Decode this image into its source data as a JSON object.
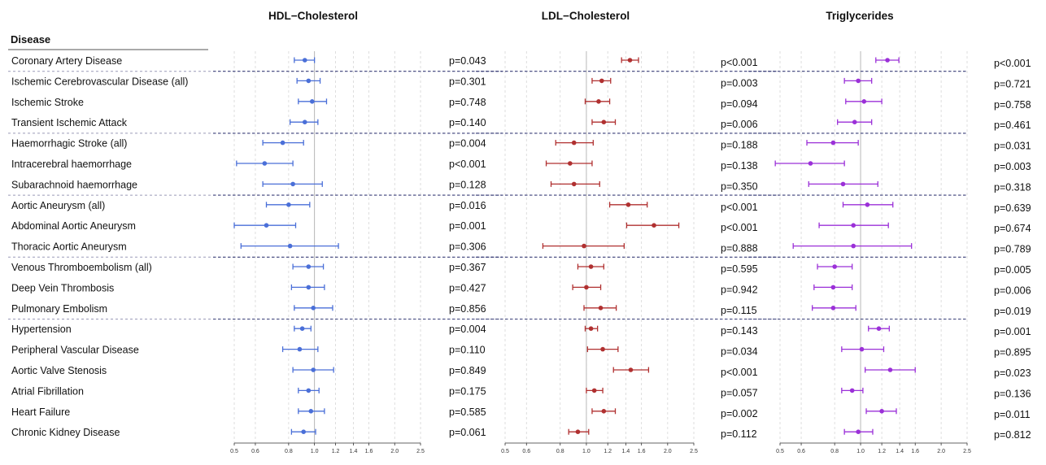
{
  "disease_header": "Disease",
  "diseases": [
    "Coronary Artery Disease",
    "Ischemic Cerebrovascular Disease (all)",
    "Ischemic Stroke",
    "Transient Ischemic Attack",
    "Haemorrhagic Stroke (all)",
    "Intracerebral haemorrhage",
    "Subarachnoid haemorrhage",
    "Aortic Aneurysm (all)",
    "Abdominal Aortic Aneurysm",
    "Thoracic Aortic Aneurysm",
    "Venous Thromboembolism (all)",
    "Deep Vein Thrombosis",
    "Pulmonary Embolism",
    "Hypertension",
    "Peripheral Vascular Disease",
    "Aortic Valve Stenosis",
    "Atrial Fibrillation",
    "Heart Failure",
    "Chronic Kidney Disease"
  ],
  "chart_data": [
    {
      "type": "forest",
      "title": "HDL−Cholesterol",
      "color": "#4a6fd8",
      "x_scale": "log",
      "x_range": [
        0.5,
        2.5
      ],
      "x_ticks": [
        "0.5",
        "0.6",
        "0.8",
        "1.0",
        "1.2",
        "1.4",
        "1.6",
        "2.0",
        "2.5"
      ],
      "reference_line": 1.0,
      "estimates": [
        0.92,
        0.95,
        0.98,
        0.92,
        0.76,
        0.65,
        0.83,
        0.8,
        0.66,
        0.81,
        0.95,
        0.95,
        0.99,
        0.9,
        0.88,
        0.99,
        0.95,
        0.97,
        0.91
      ],
      "ci_low": [
        0.84,
        0.86,
        0.87,
        0.81,
        0.64,
        0.51,
        0.64,
        0.66,
        0.5,
        0.53,
        0.83,
        0.82,
        0.84,
        0.84,
        0.76,
        0.83,
        0.87,
        0.87,
        0.82
      ],
      "ci_high": [
        1.0,
        1.05,
        1.11,
        1.03,
        0.91,
        0.83,
        1.07,
        0.96,
        0.85,
        1.23,
        1.08,
        1.09,
        1.17,
        0.97,
        1.03,
        1.18,
        1.04,
        1.09,
        1.01
      ],
      "p_values": [
        "p=0.043",
        "p=0.301",
        "p=0.748",
        "p=0.140",
        "p=0.004",
        "p<0.001",
        "p=0.128",
        "p=0.016",
        "p=0.001",
        "p=0.306",
        "p=0.367",
        "p=0.427",
        "p=0.856",
        "p=0.004",
        "p=0.110",
        "p=0.849",
        "p=0.175",
        "p=0.585",
        "p=0.061"
      ]
    },
    {
      "type": "forest",
      "title": "LDL−Cholesterol",
      "color": "#b03030",
      "x_scale": "log",
      "x_range": [
        0.5,
        2.5
      ],
      "x_ticks": [
        "0.5",
        "0.6",
        "0.8",
        "1.0",
        "1.2",
        "1.4",
        "1.6",
        "2.0",
        "2.5"
      ],
      "reference_line": 1.0,
      "estimates": [
        1.45,
        1.14,
        1.11,
        1.16,
        0.9,
        0.87,
        0.9,
        1.43,
        1.78,
        0.98,
        1.04,
        1.0,
        1.13,
        1.04,
        1.15,
        1.46,
        1.07,
        1.16,
        0.93
      ],
      "ci_low": [
        1.35,
        1.05,
        0.99,
        1.05,
        0.77,
        0.71,
        0.74,
        1.22,
        1.41,
        0.69,
        0.93,
        0.89,
        0.98,
        0.99,
        1.01,
        1.26,
        1.0,
        1.05,
        0.86
      ],
      "ci_high": [
        1.56,
        1.23,
        1.22,
        1.28,
        1.06,
        1.05,
        1.12,
        1.68,
        2.2,
        1.38,
        1.16,
        1.13,
        1.29,
        1.1,
        1.31,
        1.7,
        1.15,
        1.28,
        1.02
      ],
      "p_values": [
        "p<0.001",
        "p=0.003",
        "p=0.094",
        "p=0.006",
        "p=0.188",
        "p=0.138",
        "p=0.350",
        "p<0.001",
        "p<0.001",
        "p=0.888",
        "p=0.595",
        "p=0.942",
        "p=0.115",
        "p=0.143",
        "p=0.034",
        "p<0.001",
        "p=0.057",
        "p=0.002",
        "p=0.112"
      ]
    },
    {
      "type": "forest",
      "title": "Triglycerides",
      "color": "#9b30d8",
      "x_scale": "log",
      "x_range": [
        0.5,
        2.5
      ],
      "x_ticks": [
        "0.5",
        "0.6",
        "0.8",
        "1.0",
        "1.2",
        "1.4",
        "1.6",
        "2.0",
        "2.5"
      ],
      "reference_line": 1.0,
      "estimates": [
        1.26,
        0.98,
        1.03,
        0.95,
        0.79,
        0.65,
        0.86,
        1.06,
        0.94,
        0.94,
        0.8,
        0.79,
        0.79,
        1.17,
        1.01,
        1.29,
        0.93,
        1.2,
        0.98
      ],
      "ci_low": [
        1.14,
        0.87,
        0.88,
        0.82,
        0.63,
        0.48,
        0.64,
        0.86,
        0.7,
        0.56,
        0.69,
        0.67,
        0.66,
        1.07,
        0.85,
        1.04,
        0.85,
        1.05,
        0.87
      ],
      "ci_high": [
        1.39,
        1.1,
        1.2,
        1.1,
        0.98,
        0.87,
        1.16,
        1.32,
        1.27,
        1.55,
        0.93,
        0.93,
        0.96,
        1.28,
        1.22,
        1.6,
        1.02,
        1.36,
        1.11
      ],
      "p_values": [
        "p<0.001",
        "p=0.721",
        "p=0.758",
        "p=0.461",
        "p=0.031",
        "p=0.003",
        "p=0.318",
        "p=0.639",
        "p=0.674",
        "p=0.789",
        "p=0.005",
        "p=0.006",
        "p=0.019",
        "p=0.001",
        "p=0.895",
        "p=0.023",
        "p=0.136",
        "p=0.011",
        "p=0.812"
      ]
    }
  ]
}
